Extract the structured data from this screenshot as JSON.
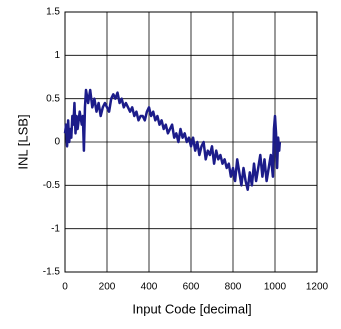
{
  "chart_data": {
    "type": "line",
    "xlabel": "Input Code [decimal]",
    "ylabel": "INL [LSB]",
    "xlim": [
      0,
      1200
    ],
    "xticks": [
      0,
      200,
      400,
      600,
      800,
      1000,
      1200
    ],
    "ylim": [
      -1.5,
      1.5
    ],
    "yticks": [
      -1.5,
      -1,
      -0.5,
      0,
      0.5,
      1,
      1.5
    ],
    "grid": true,
    "series": [
      {
        "color": "#1c1c8a",
        "x": [
          0,
          5,
          10,
          15,
          20,
          25,
          30,
          35,
          40,
          45,
          50,
          55,
          60,
          70,
          80,
          85,
          90,
          95,
          100,
          110,
          120,
          130,
          140,
          150,
          160,
          170,
          180,
          190,
          200,
          210,
          220,
          230,
          240,
          250,
          260,
          270,
          280,
          290,
          300,
          310,
          320,
          330,
          340,
          350,
          360,
          370,
          380,
          390,
          400,
          410,
          420,
          430,
          440,
          450,
          460,
          470,
          480,
          490,
          500,
          510,
          520,
          530,
          540,
          550,
          560,
          570,
          580,
          590,
          600,
          610,
          620,
          630,
          640,
          650,
          660,
          670,
          680,
          690,
          700,
          710,
          720,
          730,
          740,
          750,
          760,
          770,
          780,
          790,
          800,
          810,
          820,
          830,
          840,
          850,
          860,
          870,
          880,
          890,
          900,
          910,
          920,
          930,
          940,
          950,
          960,
          970,
          980,
          990,
          995,
          1000,
          1005,
          1010,
          1015,
          1020,
          1023
        ],
        "values": [
          0.1,
          0.2,
          -0.05,
          0.25,
          0.0,
          0.15,
          0.05,
          0.3,
          0.2,
          0.45,
          0.1,
          0.3,
          0.15,
          0.35,
          0.2,
          0.3,
          -0.1,
          0.4,
          0.6,
          0.45,
          0.6,
          0.4,
          0.5,
          0.35,
          0.45,
          0.3,
          0.4,
          0.45,
          0.4,
          0.35,
          0.5,
          0.55,
          0.5,
          0.57,
          0.45,
          0.5,
          0.4,
          0.45,
          0.4,
          0.35,
          0.4,
          0.3,
          0.35,
          0.25,
          0.3,
          0.3,
          0.25,
          0.35,
          0.4,
          0.3,
          0.35,
          0.25,
          0.3,
          0.2,
          0.25,
          0.15,
          0.2,
          0.1,
          0.15,
          0.2,
          0.05,
          0.1,
          0.0,
          0.15,
          0.05,
          0.1,
          0.0,
          0.05,
          -0.05,
          0.05,
          -0.1,
          0.0,
          -0.15,
          -0.05,
          0.0,
          -0.2,
          -0.1,
          -0.15,
          -0.05,
          -0.25,
          -0.1,
          -0.2,
          -0.15,
          -0.25,
          -0.2,
          -0.3,
          -0.25,
          -0.4,
          -0.3,
          -0.45,
          -0.2,
          -0.35,
          -0.5,
          -0.3,
          -0.45,
          -0.55,
          -0.35,
          -0.5,
          -0.25,
          -0.45,
          -0.3,
          -0.15,
          -0.4,
          -0.2,
          -0.45,
          -0.3,
          -0.15,
          -0.4,
          0.15,
          0.3,
          0.1,
          -0.3,
          0.05,
          -0.1,
          0.0
        ]
      }
    ]
  }
}
